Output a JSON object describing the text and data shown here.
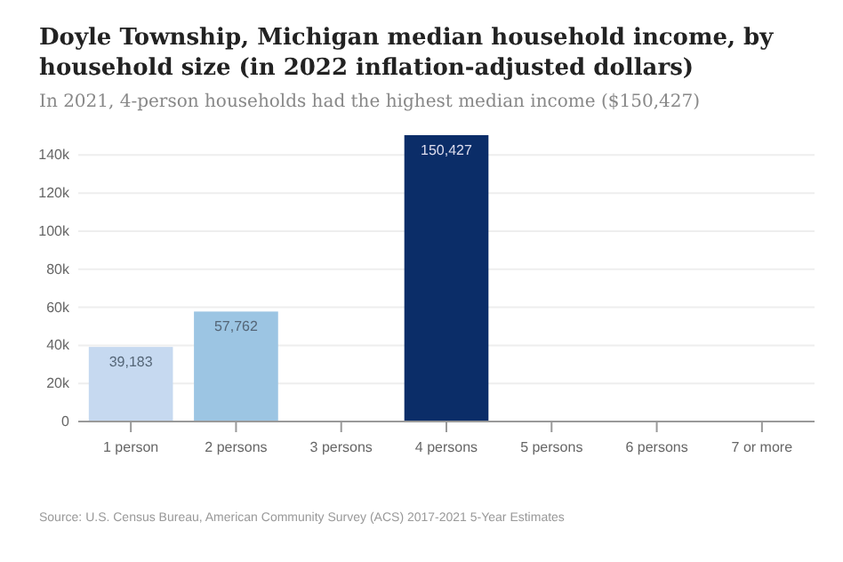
{
  "chart_data": {
    "type": "bar",
    "title": "Doyle Township, Michigan median household income, by household size (in 2022 inflation-adjusted dollars)",
    "subtitle": "In 2021, 4-person households had the highest median income ($150,427)",
    "categories": [
      "1 person",
      "2 persons",
      "3 persons",
      "4 persons",
      "5 persons",
      "6 persons",
      "7 or more"
    ],
    "values": [
      39183,
      57762,
      null,
      150427,
      null,
      null,
      null
    ],
    "colors": [
      "#c6d9f0",
      "#9cc5e3",
      null,
      "#0b2d68",
      null,
      null,
      null
    ],
    "value_labels": [
      "39,183",
      "57,762",
      null,
      "150,427",
      null,
      null,
      null
    ],
    "ylim": [
      0,
      150427
    ],
    "yticks": [
      0,
      {
        "value": 20000,
        "label": "20k"
      },
      {
        "value": 40000,
        "label": "40k"
      },
      {
        "value": 60000,
        "label": "60k"
      },
      {
        "value": 80000,
        "label": "80k"
      },
      {
        "value": 100000,
        "label": "100k"
      },
      {
        "value": 120000,
        "label": "120k"
      },
      {
        "value": 140000,
        "label": "140k"
      }
    ],
    "grid": "y",
    "annotations": [
      "Source: U.S. Census Bureau, American Community Survey (ACS) 2017-2021 5-Year Estimates"
    ]
  }
}
